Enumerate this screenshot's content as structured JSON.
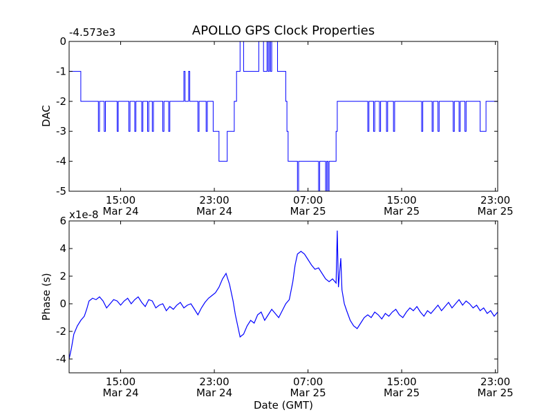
{
  "chart_data": {
    "type": "line",
    "title": "APOLLO GPS Clock Properties",
    "shared_x_ticks": [
      {
        "time": "15:00",
        "date": "Mar 24",
        "hours": 15
      },
      {
        "time": "23:00",
        "date": "Mar 24",
        "hours": 23
      },
      {
        "time": "07:00",
        "date": "Mar 25",
        "hours": 31
      },
      {
        "time": "15:00",
        "date": "Mar 25",
        "hours": 39
      },
      {
        "time": "23:00",
        "date": "Mar 25",
        "hours": 47
      }
    ],
    "xlim_hours": [
      10.6,
      47.2
    ],
    "xlabel": "Date (GMT)",
    "series_color": "#0000ff",
    "panels": [
      {
        "id": "dac",
        "ylabel": "DAC",
        "offset_label": "-4.573e3",
        "ylim": [
          -5,
          0
        ],
        "yticks": [
          0,
          -1,
          -2,
          -3,
          -4,
          -5
        ],
        "ytick_labels": [
          "0",
          "-1",
          "-2",
          "-3",
          "-4",
          "-5"
        ],
        "step": true,
        "points": [
          [
            10.6,
            -1
          ],
          [
            10.9,
            -1
          ],
          [
            11.5,
            -1
          ],
          [
            11.6,
            -2
          ],
          [
            13.0,
            -2
          ],
          [
            13.1,
            -3
          ],
          [
            13.2,
            -2
          ],
          [
            13.5,
            -2
          ],
          [
            13.6,
            -3
          ],
          [
            13.7,
            -2
          ],
          [
            14.6,
            -2
          ],
          [
            14.7,
            -3
          ],
          [
            14.8,
            -2
          ],
          [
            15.6,
            -2
          ],
          [
            15.7,
            -3
          ],
          [
            15.8,
            -2
          ],
          [
            16.1,
            -2
          ],
          [
            16.2,
            -3
          ],
          [
            16.3,
            -2
          ],
          [
            16.7,
            -2
          ],
          [
            16.8,
            -3
          ],
          [
            16.9,
            -2
          ],
          [
            17.2,
            -2
          ],
          [
            17.3,
            -3
          ],
          [
            17.4,
            -2
          ],
          [
            17.6,
            -2
          ],
          [
            17.7,
            -3
          ],
          [
            17.8,
            -2
          ],
          [
            18.5,
            -2
          ],
          [
            18.6,
            -3
          ],
          [
            18.7,
            -2
          ],
          [
            19.0,
            -2
          ],
          [
            19.1,
            -3
          ],
          [
            19.2,
            -2
          ],
          [
            20.3,
            -2
          ],
          [
            20.4,
            -1
          ],
          [
            20.5,
            -2
          ],
          [
            20.7,
            -2
          ],
          [
            20.8,
            -1
          ],
          [
            20.9,
            -2
          ],
          [
            21.5,
            -2
          ],
          [
            21.6,
            -3
          ],
          [
            21.7,
            -2
          ],
          [
            22.2,
            -2
          ],
          [
            22.3,
            -3
          ],
          [
            22.4,
            -2
          ],
          [
            22.8,
            -2
          ],
          [
            22.9,
            -3
          ],
          [
            23.0,
            -3
          ],
          [
            23.3,
            -3
          ],
          [
            23.4,
            -4
          ],
          [
            24.0,
            -4
          ],
          [
            24.1,
            -3
          ],
          [
            24.6,
            -3
          ],
          [
            24.7,
            -2
          ],
          [
            24.8,
            -2
          ],
          [
            24.9,
            -1
          ],
          [
            25.1,
            -1
          ],
          [
            25.2,
            0
          ],
          [
            25.4,
            0
          ],
          [
            25.5,
            -1
          ],
          [
            26.7,
            -1
          ],
          [
            26.8,
            0
          ],
          [
            27.1,
            0
          ],
          [
            27.2,
            -1
          ],
          [
            27.4,
            -1
          ],
          [
            27.5,
            0
          ],
          [
            27.6,
            -1
          ],
          [
            27.7,
            0
          ],
          [
            27.8,
            -1
          ],
          [
            27.9,
            0
          ],
          [
            28.3,
            0
          ],
          [
            28.4,
            -1
          ],
          [
            29.0,
            -1
          ],
          [
            29.1,
            -2
          ],
          [
            29.2,
            -3
          ],
          [
            29.3,
            -4
          ],
          [
            30.0,
            -4
          ],
          [
            30.1,
            -5
          ],
          [
            30.2,
            -4
          ],
          [
            31.8,
            -4
          ],
          [
            31.9,
            -5
          ],
          [
            32.0,
            -4
          ],
          [
            32.4,
            -4
          ],
          [
            32.5,
            -5
          ],
          [
            32.6,
            -4
          ],
          [
            32.7,
            -5
          ],
          [
            32.8,
            -4
          ],
          [
            33.3,
            -4
          ],
          [
            33.4,
            -3
          ],
          [
            33.5,
            -2
          ],
          [
            36.0,
            -2
          ],
          [
            36.1,
            -3
          ],
          [
            36.2,
            -2
          ],
          [
            36.5,
            -2
          ],
          [
            36.6,
            -3
          ],
          [
            36.7,
            -2
          ],
          [
            37.0,
            -2
          ],
          [
            37.1,
            -3
          ],
          [
            37.2,
            -2
          ],
          [
            37.6,
            -2
          ],
          [
            37.7,
            -3
          ],
          [
            37.8,
            -2
          ],
          [
            38.2,
            -2
          ],
          [
            38.3,
            -3
          ],
          [
            38.4,
            -2
          ],
          [
            40.6,
            -2
          ],
          [
            40.7,
            -3
          ],
          [
            40.8,
            -2
          ],
          [
            41.5,
            -2
          ],
          [
            41.6,
            -3
          ],
          [
            41.7,
            -2
          ],
          [
            42.0,
            -2
          ],
          [
            42.1,
            -3
          ],
          [
            42.2,
            -2
          ],
          [
            43.3,
            -2
          ],
          [
            43.4,
            -3
          ],
          [
            43.5,
            -2
          ],
          [
            43.8,
            -2
          ],
          [
            43.9,
            -3
          ],
          [
            44.0,
            -2
          ],
          [
            44.3,
            -2
          ],
          [
            44.4,
            -3
          ],
          [
            44.5,
            -2
          ],
          [
            45.6,
            -2
          ],
          [
            45.7,
            -3
          ],
          [
            46.1,
            -3
          ],
          [
            46.2,
            -2
          ],
          [
            47.2,
            -2
          ]
        ]
      },
      {
        "id": "phase",
        "ylabel": "Phase (s)",
        "offset_label": "x1e-8",
        "ylim": [
          -5,
          6
        ],
        "yticks": [
          6,
          4,
          2,
          0,
          -2,
          -4
        ],
        "ytick_labels": [
          "6",
          "4",
          "2",
          "0",
          "-2",
          "-4"
        ],
        "step": false,
        "points": [
          [
            10.6,
            -4.0
          ],
          [
            10.8,
            -3.2
          ],
          [
            11.0,
            -2.2
          ],
          [
            11.3,
            -1.6
          ],
          [
            11.6,
            -1.2
          ],
          [
            11.9,
            -0.9
          ],
          [
            12.1,
            -0.4
          ],
          [
            12.3,
            0.2
          ],
          [
            12.6,
            0.4
          ],
          [
            12.9,
            0.3
          ],
          [
            13.2,
            0.5
          ],
          [
            13.5,
            0.2
          ],
          [
            13.8,
            -0.3
          ],
          [
            14.1,
            0.0
          ],
          [
            14.4,
            0.3
          ],
          [
            14.7,
            0.2
          ],
          [
            15.0,
            -0.1
          ],
          [
            15.3,
            0.2
          ],
          [
            15.6,
            0.4
          ],
          [
            15.9,
            0.0
          ],
          [
            16.2,
            0.3
          ],
          [
            16.5,
            0.5
          ],
          [
            16.8,
            0.1
          ],
          [
            17.1,
            -0.2
          ],
          [
            17.4,
            0.3
          ],
          [
            17.7,
            0.2
          ],
          [
            18.0,
            -0.3
          ],
          [
            18.3,
            -0.1
          ],
          [
            18.6,
            0.0
          ],
          [
            18.9,
            -0.5
          ],
          [
            19.2,
            -0.2
          ],
          [
            19.5,
            -0.4
          ],
          [
            19.8,
            -0.1
          ],
          [
            20.1,
            0.1
          ],
          [
            20.4,
            -0.3
          ],
          [
            20.7,
            -0.1
          ],
          [
            21.0,
            0.0
          ],
          [
            21.3,
            -0.4
          ],
          [
            21.6,
            -0.8
          ],
          [
            21.9,
            -0.3
          ],
          [
            22.2,
            0.1
          ],
          [
            22.5,
            0.4
          ],
          [
            22.8,
            0.6
          ],
          [
            23.1,
            0.8
          ],
          [
            23.4,
            1.2
          ],
          [
            23.7,
            1.8
          ],
          [
            24.0,
            2.2
          ],
          [
            24.3,
            1.4
          ],
          [
            24.6,
            0.2
          ],
          [
            24.8,
            -0.8
          ],
          [
            25.0,
            -1.6
          ],
          [
            25.2,
            -2.4
          ],
          [
            25.5,
            -2.2
          ],
          [
            25.8,
            -1.6
          ],
          [
            26.1,
            -1.2
          ],
          [
            26.4,
            -1.4
          ],
          [
            26.7,
            -0.8
          ],
          [
            27.0,
            -0.6
          ],
          [
            27.3,
            -1.2
          ],
          [
            27.6,
            -0.8
          ],
          [
            27.9,
            -0.4
          ],
          [
            28.2,
            -0.7
          ],
          [
            28.5,
            -1.0
          ],
          [
            28.8,
            -0.5
          ],
          [
            29.1,
            0.0
          ],
          [
            29.4,
            0.3
          ],
          [
            29.7,
            1.6
          ],
          [
            29.9,
            2.8
          ],
          [
            30.1,
            3.6
          ],
          [
            30.4,
            3.8
          ],
          [
            30.7,
            3.6
          ],
          [
            31.0,
            3.2
          ],
          [
            31.3,
            2.8
          ],
          [
            31.6,
            2.5
          ],
          [
            31.9,
            2.6
          ],
          [
            32.2,
            2.2
          ],
          [
            32.5,
            1.8
          ],
          [
            32.8,
            1.6
          ],
          [
            33.1,
            1.8
          ],
          [
            33.4,
            1.5
          ],
          [
            33.5,
            5.3
          ],
          [
            33.6,
            1.2
          ],
          [
            33.8,
            3.3
          ],
          [
            33.9,
            1.0
          ],
          [
            34.1,
            0.0
          ],
          [
            34.3,
            -0.5
          ],
          [
            34.6,
            -1.2
          ],
          [
            34.9,
            -1.6
          ],
          [
            35.2,
            -1.8
          ],
          [
            35.5,
            -1.4
          ],
          [
            35.8,
            -1.0
          ],
          [
            36.1,
            -0.8
          ],
          [
            36.4,
            -1.0
          ],
          [
            36.7,
            -0.6
          ],
          [
            37.0,
            -0.8
          ],
          [
            37.3,
            -1.1
          ],
          [
            37.6,
            -0.7
          ],
          [
            37.9,
            -0.9
          ],
          [
            38.2,
            -0.6
          ],
          [
            38.5,
            -0.4
          ],
          [
            38.8,
            -0.8
          ],
          [
            39.1,
            -1.0
          ],
          [
            39.4,
            -0.6
          ],
          [
            39.7,
            -0.3
          ],
          [
            40.0,
            -0.5
          ],
          [
            40.3,
            -0.2
          ],
          [
            40.6,
            -0.6
          ],
          [
            40.9,
            -0.9
          ],
          [
            41.2,
            -0.5
          ],
          [
            41.5,
            -0.7
          ],
          [
            41.8,
            -0.4
          ],
          [
            42.1,
            -0.1
          ],
          [
            42.4,
            -0.5
          ],
          [
            42.7,
            -0.2
          ],
          [
            43.0,
            0.1
          ],
          [
            43.3,
            -0.3
          ],
          [
            43.6,
            0.0
          ],
          [
            43.9,
            0.3
          ],
          [
            44.2,
            -0.1
          ],
          [
            44.5,
            0.2
          ],
          [
            44.8,
            0.0
          ],
          [
            45.1,
            -0.3
          ],
          [
            45.4,
            -0.1
          ],
          [
            45.7,
            -0.5
          ],
          [
            46.0,
            -0.3
          ],
          [
            46.3,
            -0.7
          ],
          [
            46.6,
            -0.5
          ],
          [
            46.9,
            -0.9
          ],
          [
            47.2,
            -0.6
          ]
        ]
      }
    ]
  }
}
